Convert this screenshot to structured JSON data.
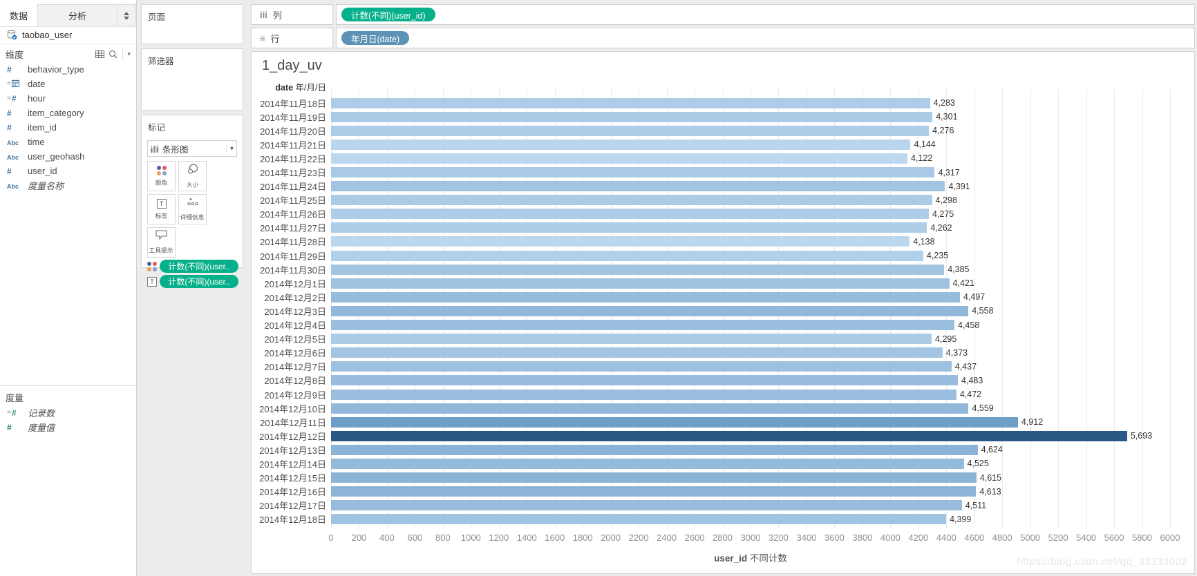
{
  "app": {
    "tabs": [
      {
        "label": "数据",
        "active": true
      },
      {
        "label": "分析",
        "active": false
      }
    ]
  },
  "datasource": {
    "name": "taobao_user",
    "icon": "database-icon"
  },
  "dimensions": {
    "header": "维度",
    "header_icons": [
      "grid-icon",
      "search-icon",
      "caret-down-icon"
    ],
    "fields": [
      {
        "icon": "number-icon",
        "label": "behavior_type"
      },
      {
        "icon": "calendar-icon",
        "prefix": "=",
        "label": "date"
      },
      {
        "icon": "number-icon",
        "prefix": "=",
        "label": "hour"
      },
      {
        "icon": "number-icon",
        "label": "item_category"
      },
      {
        "icon": "number-icon",
        "label": "item_id"
      },
      {
        "icon": "text-icon",
        "label": "time"
      },
      {
        "icon": "text-icon",
        "label": "user_geohash"
      },
      {
        "icon": "number-icon",
        "label": "user_id"
      },
      {
        "icon": "text-icon",
        "label": "度量名称",
        "italic": true
      }
    ]
  },
  "measures": {
    "header": "度量",
    "fields": [
      {
        "icon": "number-icon",
        "prefix": "=",
        "label": "记录数",
        "italic": true
      },
      {
        "icon": "number-icon",
        "label": "度量值",
        "italic": true
      }
    ]
  },
  "pages_shelf": {
    "title": "页面"
  },
  "filters_shelf": {
    "title": "筛选器"
  },
  "marks_card": {
    "title": "标记",
    "mark_type_label": "条形图",
    "mark_type_icon": "bar-chart-icon",
    "dropdown_caret": "▾",
    "buttons": [
      {
        "id": "color",
        "label": "颜色",
        "icon": "color-dots-icon"
      },
      {
        "id": "size",
        "label": "大小",
        "icon": "size-circles-icon"
      },
      {
        "id": "label",
        "label": "标签",
        "icon": "text-label-icon"
      },
      {
        "id": "detail",
        "label": "详细信息",
        "icon": "detail-dots-icon"
      },
      {
        "id": "tooltip",
        "label": "工具提示",
        "icon": "tooltip-bubble-icon"
      }
    ],
    "pills": [
      {
        "icon": "color-dots-icon",
        "text": "计数(不同)(user.."
      },
      {
        "icon": "text-label-icon",
        "text": "计数(不同)(user.."
      }
    ]
  },
  "shelves": {
    "columns": {
      "label": "列",
      "icon": "columns-icon",
      "icon_glyph": "iii",
      "pills": [
        {
          "text": "计数(不同)(user_id)",
          "color_role": "green"
        }
      ]
    },
    "rows": {
      "label": "行",
      "icon": "rows-icon",
      "icon_glyph": "≡",
      "pills": [
        {
          "text": "年月日(date)",
          "color_role": "blue"
        }
      ]
    }
  },
  "chart_data": {
    "type": "bar",
    "orientation": "horizontal",
    "title": "1_day_uv",
    "row_header_field": "date",
    "row_header_format": "年/月/日",
    "categories": [
      "2014年11月18日",
      "2014年11月19日",
      "2014年11月20日",
      "2014年11月21日",
      "2014年11月22日",
      "2014年11月23日",
      "2014年11月24日",
      "2014年11月25日",
      "2014年11月26日",
      "2014年11月27日",
      "2014年11月28日",
      "2014年11月29日",
      "2014年11月30日",
      "2014年12月1日",
      "2014年12月2日",
      "2014年12月3日",
      "2014年12月4日",
      "2014年12月5日",
      "2014年12月6日",
      "2014年12月7日",
      "2014年12月8日",
      "2014年12月9日",
      "2014年12月10日",
      "2014年12月11日",
      "2014年12月12日",
      "2014年12月13日",
      "2014年12月14日",
      "2014年12月15日",
      "2014年12月16日",
      "2014年12月17日",
      "2014年12月18日"
    ],
    "values": [
      4283,
      4301,
      4276,
      4144,
      4122,
      4317,
      4391,
      4298,
      4275,
      4262,
      4138,
      4235,
      4385,
      4421,
      4497,
      4558,
      4458,
      4295,
      4373,
      4437,
      4483,
      4472,
      4559,
      4912,
      5693,
      4624,
      4525,
      4615,
      4613,
      4511,
      4399
    ],
    "value_labels": [
      "4,283",
      "4,301",
      "4,276",
      "4,144",
      "4,122",
      "4,317",
      "4,391",
      "4,298",
      "4,275",
      "4,262",
      "4,138",
      "4,235",
      "4,385",
      "4,421",
      "4,497",
      "4,558",
      "4,458",
      "4,295",
      "4,373",
      "4,437",
      "4,483",
      "4,472",
      "4,559",
      "4,912",
      "5,693",
      "4,624",
      "4,525",
      "4,615",
      "4,613",
      "4,511",
      "4,399"
    ],
    "xlabel_field": "user_id",
    "xlabel_desc": "不同计数",
    "xlim": [
      0,
      6000
    ],
    "x_ticks": [
      0,
      200,
      400,
      600,
      800,
      1000,
      1200,
      1400,
      1600,
      1800,
      2000,
      2200,
      2400,
      2600,
      2800,
      3000,
      3200,
      3400,
      3600,
      3800,
      4000,
      4200,
      4400,
      4600,
      4800,
      5000,
      5200,
      5400,
      5600,
      5800,
      6000
    ],
    "grid": true,
    "legend_position": "none",
    "color_scale": {
      "field": "计数(不同)(user_id)",
      "min_value": 4122,
      "max_value": 5693,
      "stops": [
        "#bcd8ef",
        "#6f9ec9",
        "#2a5783"
      ]
    }
  },
  "watermark": "https://blog.csdn.net/qq_33333002",
  "colors": {
    "pill_green": "#06b08a",
    "pill_blue": "#5b92b6",
    "dim_icon_blue": "#3c76a6",
    "measure_icon_green": "#2f8e62",
    "color_dots": [
      "#4e5fa3",
      "#e05c5e",
      "#f09d53",
      "#8c9ad0"
    ]
  }
}
